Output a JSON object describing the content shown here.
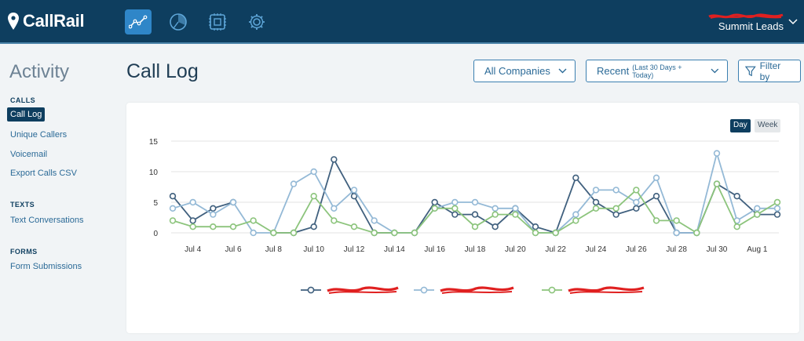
{
  "app": {
    "logo_text": "CallRail",
    "account_name": "Summit Leads",
    "account_sub": "████████████"
  },
  "nav": [
    {
      "icon": "activity-chart-icon",
      "active": true
    },
    {
      "icon": "reports-gauge-icon",
      "active": false
    },
    {
      "icon": "integrations-chip-icon",
      "active": false
    },
    {
      "icon": "settings-gear-icon",
      "active": false
    }
  ],
  "sidebar": {
    "title": "Activity",
    "sections": [
      {
        "heading": "CALLS",
        "items": [
          "Call Log",
          "Unique Callers",
          "Voicemail",
          "Export Calls CSV"
        ]
      },
      {
        "heading": "TEXTS",
        "items": [
          "Text Conversations"
        ]
      },
      {
        "heading": "FORMS",
        "items": [
          "Form Submissions"
        ]
      }
    ]
  },
  "header": {
    "title": "Call Log",
    "companies_label": "All Companies",
    "range_label": "Recent",
    "range_sub": "(Last 30 Days + Today)",
    "filter_label": "Filter by"
  },
  "toggle": {
    "day": "Day",
    "week": "Week",
    "selected": "Day"
  },
  "colors": {
    "topbar": "#0e3e5f",
    "accent": "#2f86c8",
    "series1": "#40607e",
    "series2": "#94b9d6",
    "series3": "#8cc47c",
    "redaction": "#e02020"
  },
  "chart_data": {
    "type": "line",
    "x": [
      "Jul 3",
      "Jul 4",
      "Jul 5",
      "Jul 6",
      "Jul 7",
      "Jul 8",
      "Jul 9",
      "Jul 10",
      "Jul 11",
      "Jul 12",
      "Jul 13",
      "Jul 14",
      "Jul 15",
      "Jul 16",
      "Jul 17",
      "Jul 18",
      "Jul 19",
      "Jul 20",
      "Jul 21",
      "Jul 22",
      "Jul 23",
      "Jul 24",
      "Jul 25",
      "Jul 26",
      "Jul 27",
      "Jul 28",
      "Jul 29",
      "Jul 30",
      "Jul 31",
      "Aug 1",
      "Aug 2"
    ],
    "x_tick_labels": [
      "Jul 4",
      "Jul 6",
      "Jul 8",
      "Jul 10",
      "Jul 12",
      "Jul 14",
      "Jul 16",
      "Jul 18",
      "Jul 20",
      "Jul 22",
      "Jul 24",
      "Jul 26",
      "Jul 28",
      "Jul 30",
      "Aug 1"
    ],
    "y_ticks": [
      0,
      5,
      10,
      15
    ],
    "ylim": [
      0,
      15
    ],
    "grid": true,
    "legend_position": "bottom-center",
    "series": [
      {
        "name": "",
        "redacted": true,
        "values": [
          6,
          2,
          4,
          5,
          null,
          0,
          0,
          1,
          12,
          6,
          0,
          0,
          0,
          5,
          3,
          3,
          1,
          4,
          1,
          0,
          9,
          5,
          3,
          4,
          6,
          0,
          0,
          8,
          6,
          3,
          3
        ]
      },
      {
        "name": "",
        "redacted": true,
        "values": [
          4,
          5,
          3,
          5,
          0,
          0,
          8,
          10,
          4,
          7,
          2,
          0,
          0,
          4,
          5,
          5,
          4,
          4,
          0,
          0,
          3,
          7,
          7,
          5,
          9,
          0,
          0,
          13,
          2,
          4,
          4
        ]
      },
      {
        "name": "",
        "redacted": true,
        "values": [
          2,
          1,
          1,
          1,
          2,
          0,
          0,
          6,
          2,
          1,
          0,
          0,
          0,
          4,
          4,
          1,
          3,
          3,
          0,
          0,
          2,
          4,
          4,
          7,
          2,
          2,
          0,
          8,
          1,
          3,
          5
        ]
      }
    ]
  }
}
